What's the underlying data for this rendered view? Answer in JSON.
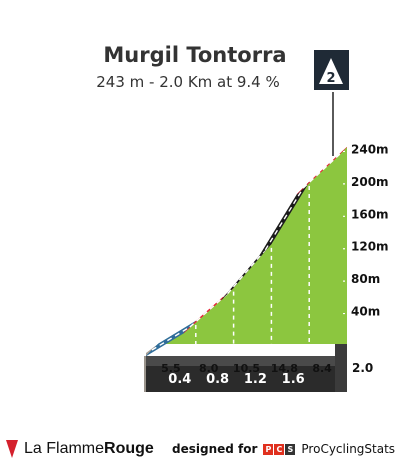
{
  "climb": {
    "name": "Murgil Tontorra",
    "summary": "243 m - 2.0 Km at 9.4 %",
    "category": "2"
  },
  "chart_data": {
    "type": "area",
    "title": "Murgil Tontorra",
    "subtitle": "243 m - 2.0 Km at 9.4 %",
    "x_label_end": "2.0",
    "xlim": [
      0,
      2.0
    ],
    "ylim": [
      0,
      243
    ],
    "y_ticks": [
      40,
      80,
      120,
      160,
      200,
      240
    ],
    "y_tick_labels": [
      "40m",
      "80m",
      "120m",
      "160m",
      "200m",
      "240m"
    ],
    "segments": [
      {
        "from_km": 0.0,
        "to_km": 0.4,
        "gradient": 5.5,
        "gradient_label": "5.5",
        "km_label": "0.4",
        "color": "#2f6d9a"
      },
      {
        "from_km": 0.4,
        "to_km": 0.8,
        "gradient": 8.0,
        "gradient_label": "8.0",
        "km_label": "0.8",
        "color": "#e8253b"
      },
      {
        "from_km": 0.8,
        "to_km": 1.2,
        "gradient": 10.5,
        "gradient_label": "10.5",
        "km_label": "1.2",
        "color": "#1b1b1b"
      },
      {
        "from_km": 1.2,
        "to_km": 1.6,
        "gradient": 14.8,
        "gradient_label": "14.8",
        "km_label": "1.6",
        "color": "#1b1b1b"
      },
      {
        "from_km": 1.6,
        "to_km": 2.0,
        "gradient": 8.4,
        "gradient_label": "8.4",
        "km_label": "",
        "color": "#e8253b"
      }
    ],
    "fill_color": "#8cc63f",
    "grid": true
  },
  "footer": {
    "brand_prefix": "La Flamme",
    "brand_suffix": "Rouge",
    "credit_label": "designed for",
    "credit_logo_letters": [
      "P",
      "C",
      "S"
    ],
    "credit_site": "ProCyclingStats"
  }
}
